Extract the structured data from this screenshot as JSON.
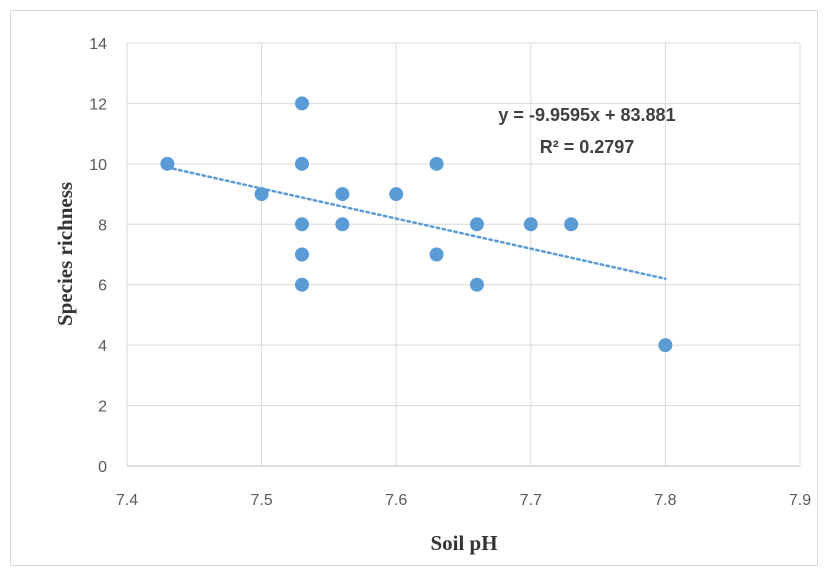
{
  "chart_data": {
    "type": "scatter",
    "xlabel": "Soil pH",
    "ylabel": "Species richness",
    "xlim": [
      7.4,
      7.9
    ],
    "ylim": [
      0,
      14
    ],
    "xticks": [
      "7.4",
      "7.5",
      "7.6",
      "7.7",
      "7.8",
      "7.9"
    ],
    "yticks": [
      "0",
      "2",
      "4",
      "6",
      "8",
      "10",
      "12",
      "14"
    ],
    "grid": true,
    "point_color": "#5b9bd5",
    "series": [
      {
        "x": [
          7.43,
          7.5,
          7.53,
          7.53,
          7.53,
          7.53,
          7.53,
          7.56,
          7.56,
          7.6,
          7.63,
          7.63,
          7.66,
          7.66,
          7.7,
          7.73,
          7.8
        ],
        "y": [
          10,
          9,
          12,
          10,
          8,
          7,
          6,
          9,
          8,
          9,
          10,
          7,
          8,
          6,
          8,
          8,
          4
        ]
      }
    ],
    "trendline": {
      "style": "dotted",
      "color": "#5b9bd5",
      "slope": -9.9595,
      "intercept": 83.881,
      "x_range": [
        7.43,
        7.8
      ],
      "equation": "y = -9.9595x + 83.881",
      "r_squared": "R² = 0.2797"
    }
  }
}
